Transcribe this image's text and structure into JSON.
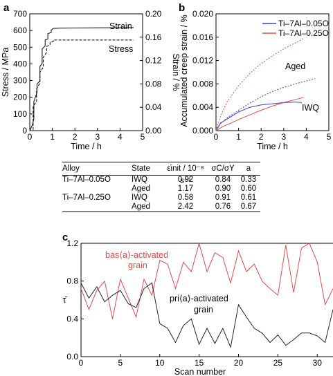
{
  "panel_labels": [
    "a",
    "b",
    "c"
  ],
  "chart_data": [
    {
      "id": "a",
      "type": "line",
      "xlabel": "Time / h",
      "ylabel": "Stress / MPa",
      "y2label": "Strain / %",
      "xlim": [
        0,
        5
      ],
      "ylim": [
        0,
        700
      ],
      "y2lim": [
        0,
        0.2
      ],
      "xticks": [
        "0",
        "1",
        "2",
        "3",
        "4",
        "5"
      ],
      "yticks": [
        "0",
        "100",
        "200",
        "300",
        "400",
        "500",
        "600",
        "700"
      ],
      "y2ticks": [
        "0.00",
        "0.04",
        "0.08",
        "0.12",
        "0.16",
        "0.20"
      ],
      "annotations": [
        "Strain",
        "Stress"
      ],
      "series": [
        {
          "name": "Strain",
          "axis": "y2",
          "style": "solid",
          "x": [
            0,
            0.12,
            0.18,
            0.18,
            0.32,
            0.32,
            0.45,
            0.45,
            0.55,
            0.55,
            0.68,
            0.68,
            0.8,
            0.8,
            0.95,
            0.95,
            1.05,
            1.3,
            2,
            3,
            4,
            4.6
          ],
          "y": [
            0,
            0.01,
            0.02,
            0.05,
            0.065,
            0.08,
            0.085,
            0.11,
            0.115,
            0.14,
            0.145,
            0.155,
            0.157,
            0.166,
            0.168,
            0.172,
            0.175,
            0.1755,
            0.1757,
            0.176,
            0.1762,
            0.1764
          ]
        },
        {
          "name": "Stress",
          "axis": "y",
          "style": "dashed",
          "x": [
            0,
            0.15,
            0.15,
            0.3,
            0.3,
            0.45,
            0.45,
            0.6,
            0.6,
            0.75,
            0.75,
            0.9,
            0.9,
            1.05,
            1.05,
            4.6
          ],
          "y": [
            0,
            0,
            145,
            175,
            250,
            285,
            350,
            380,
            440,
            470,
            505,
            515,
            530,
            535,
            543,
            543
          ]
        }
      ]
    },
    {
      "id": "b",
      "type": "line",
      "xlabel": "Time / h",
      "ylabel": "Accumulated creep strain / %",
      "xlim": [
        0,
        5
      ],
      "ylim": [
        0,
        0.02
      ],
      "xticks": [
        "0",
        "1",
        "2",
        "3",
        "4",
        "5"
      ],
      "yticks": [
        "0.000",
        "0.004",
        "0.008",
        "0.012",
        "0.016",
        "0.020"
      ],
      "annotations": [
        "Aged",
        "IWQ"
      ],
      "legend": [
        "Ti–7Al–0.05O",
        "Ti–7Al–0.25O"
      ],
      "legend_placement": "top-right",
      "series": [
        {
          "name": "Ti–7Al–0.05O",
          "state": "IWQ",
          "style": "solid",
          "color": "#3b3bdc",
          "x": [
            0,
            0.2,
            0.5,
            1,
            1.5,
            2,
            2.5,
            3,
            3.5,
            3.8
          ],
          "y": [
            0,
            0.0013,
            0.002,
            0.0032,
            0.004,
            0.0044,
            0.0046,
            0.0048,
            0.0049,
            0.0048
          ]
        },
        {
          "name": "Ti–7Al–0.05O",
          "state": "Aged",
          "style": "dotted",
          "color": "#3b3bdc",
          "x": [
            0,
            0.2,
            0.5,
            1,
            1.5,
            2,
            2.5,
            3,
            3.5,
            4,
            4.4
          ],
          "y": [
            0,
            0.0012,
            0.0022,
            0.0035,
            0.0047,
            0.0058,
            0.0067,
            0.0074,
            0.008,
            0.0085,
            0.0089
          ]
        },
        {
          "name": "Ti–7Al–0.25O",
          "state": "IWQ",
          "style": "solid",
          "color": "#e84848",
          "x": [
            0,
            0.3,
            0.6,
            1,
            1.5,
            2,
            2.5,
            3,
            3.5,
            3.9
          ],
          "y": [
            0,
            0.0007,
            0.0012,
            0.0019,
            0.0027,
            0.0035,
            0.0042,
            0.0048,
            0.0053,
            0.0057
          ]
        },
        {
          "name": "Ti–7Al–0.25O",
          "state": "Aged",
          "style": "dotted",
          "color": "#e84848",
          "x": [
            0,
            0.2,
            0.5,
            1,
            1.5,
            2,
            2.5,
            3,
            3.5,
            3.9
          ],
          "y": [
            0,
            0.0025,
            0.005,
            0.0077,
            0.0098,
            0.0115,
            0.0128,
            0.014,
            0.015,
            0.0158
          ]
        }
      ]
    },
    {
      "id": "c",
      "type": "line",
      "xlabel": "Scan number",
      "ylabel": "τ̄",
      "xlim": [
        0,
        32
      ],
      "ylim": [
        0,
        1.2
      ],
      "xticks": [
        "0",
        "5",
        "10",
        "15",
        "20",
        "25",
        "30"
      ],
      "yticks": [
        "0.0",
        "0.4",
        "0.8",
        "1.2"
      ],
      "annotations": [
        "bas⟨a⟩-activated",
        "grain",
        "pri⟨a⟩-activated",
        "grain"
      ],
      "series": [
        {
          "name": "bas⟨a⟩-activated grain",
          "color": "#e84848",
          "x": [
            0,
            1,
            2,
            3,
            4,
            5,
            6,
            7,
            8,
            9,
            10,
            11,
            12,
            13,
            14,
            15,
            16,
            17,
            18,
            19,
            20,
            21,
            22,
            23,
            24,
            25,
            26,
            27,
            28,
            29,
            30,
            31,
            32
          ],
          "y": [
            0.72,
            0.5,
            0.7,
            0.8,
            0.4,
            0.82,
            0.62,
            0.42,
            0.82,
            0.65,
            1.02,
            0.98,
            0.72,
            1.0,
            0.9,
            1.2,
            0.9,
            1.1,
            1.05,
            0.78,
            1.12,
            0.9,
            0.98,
            0.8,
            0.72,
            0.65,
            1.18,
            0.68,
            1.15,
            1.2,
            1.0,
            0.55,
            0.72
          ]
        },
        {
          "name": "pri⟨a⟩-activated grain",
          "color": "#222222",
          "x": [
            0,
            1,
            2,
            3,
            4,
            5,
            6,
            7,
            8,
            9,
            10,
            11,
            12,
            13,
            14,
            15,
            16,
            17,
            18,
            19,
            20,
            21,
            22,
            23,
            24,
            25,
            26,
            27,
            28,
            29,
            30,
            31,
            32
          ],
          "y": [
            0.78,
            0.62,
            0.74,
            0.58,
            0.65,
            0.7,
            0.56,
            0.52,
            0.72,
            0.78,
            0.35,
            0.3,
            0.15,
            0.33,
            0.4,
            0.13,
            0.3,
            0.14,
            0.3,
            0.1,
            0.55,
            0.42,
            0.3,
            0.25,
            0.15,
            0.23,
            0.12,
            0.18,
            0.25,
            0.25,
            0.22,
            0.15,
            0.5
          ]
        }
      ]
    }
  ],
  "table": {
    "headers": [
      "Alloy",
      "State",
      "ε̇init / 10⁻⁸ s⁻¹",
      "σC/σY",
      "a"
    ],
    "rows": [
      [
        "Ti–7Al–0.05O",
        "IWQ",
        "0.92",
        "0.84",
        "0.33"
      ],
      [
        "",
        "Aged",
        "1.17",
        "0.90",
        "0.60"
      ],
      [
        "Ti–7Al–0.25O",
        "IWQ",
        "0.58",
        "0.91",
        "0.61"
      ],
      [
        "",
        "Aged",
        "2.42",
        "0.76",
        "0.67"
      ]
    ]
  }
}
